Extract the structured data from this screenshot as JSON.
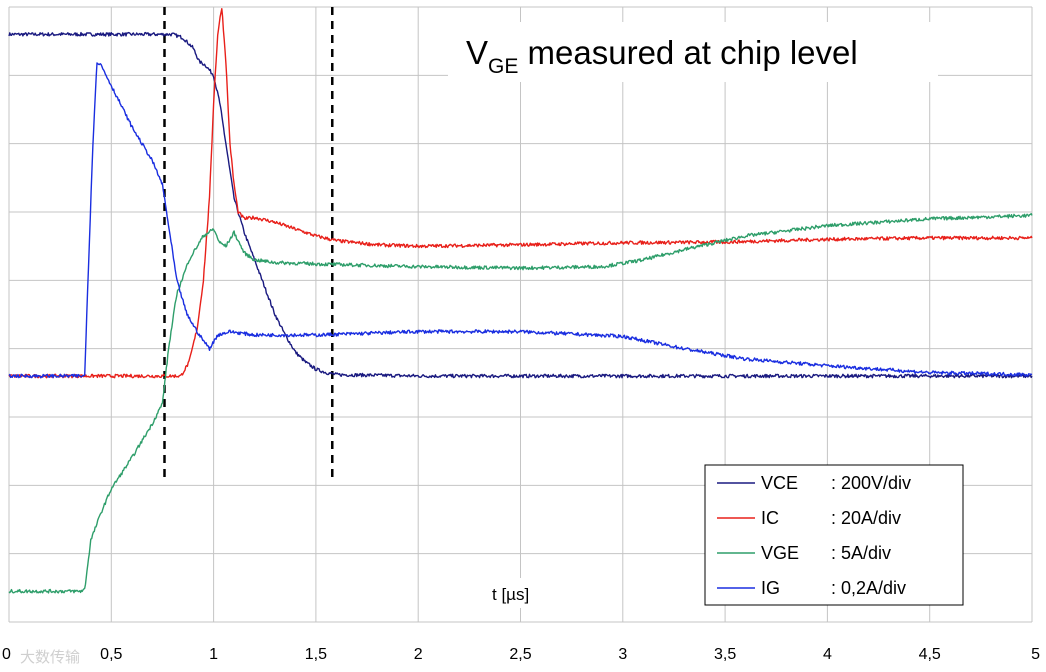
{
  "chart_data": {
    "type": "line",
    "title_main": "V",
    "title_sub": "GE",
    "title_rest": " measured at chip level",
    "xlabel": "t [µs]",
    "xlim": [
      0,
      5
    ],
    "ylim": [
      0,
      9
    ],
    "x_ticks": [
      {
        "value": 0,
        "label": "0"
      },
      {
        "value": 0.5,
        "label": "0,5"
      },
      {
        "value": 1,
        "label": "1"
      },
      {
        "value": 1.5,
        "label": "1,5"
      },
      {
        "value": 2,
        "label": "2"
      },
      {
        "value": 2.5,
        "label": "2,5"
      },
      {
        "value": 3,
        "label": "3"
      },
      {
        "value": 3.5,
        "label": "3,5"
      },
      {
        "value": 4,
        "label": "4"
      },
      {
        "value": 4.5,
        "label": "4,5"
      },
      {
        "value": 5,
        "label": "5"
      }
    ],
    "grid": true,
    "markers": [
      {
        "x": 0.76,
        "y_from": 2.1,
        "y_to": 9
      },
      {
        "x": 1.58,
        "y_from": 2.1,
        "y_to": 9
      }
    ],
    "legend": {
      "placement": "bottom-right",
      "entries": [
        {
          "name": "VCE",
          "scale": ": 200V/div",
          "color": "#1a1a80"
        },
        {
          "name": "IC",
          "scale": ": 20A/div",
          "color": "#e8201a"
        },
        {
          "name": "VGE",
          "scale": ": 5A/div",
          "color": "#2e9e6a"
        },
        {
          "name": "IG",
          "scale": ": 0,2A/div",
          "color": "#1a2ee0"
        }
      ]
    },
    "series": [
      {
        "name": "VCE",
        "color": "#1a1a80",
        "points": [
          [
            0,
            8.6
          ],
          [
            0.2,
            8.6
          ],
          [
            0.4,
            8.6
          ],
          [
            0.6,
            8.6
          ],
          [
            0.8,
            8.6
          ],
          [
            0.85,
            8.55
          ],
          [
            0.9,
            8.4
          ],
          [
            0.93,
            8.2
          ],
          [
            0.96,
            8.15
          ],
          [
            1.0,
            8.0
          ],
          [
            1.03,
            7.6
          ],
          [
            1.06,
            7.0
          ],
          [
            1.1,
            6.2
          ],
          [
            1.15,
            5.7
          ],
          [
            1.2,
            5.3
          ],
          [
            1.25,
            4.9
          ],
          [
            1.3,
            4.5
          ],
          [
            1.35,
            4.2
          ],
          [
            1.4,
            3.95
          ],
          [
            1.45,
            3.8
          ],
          [
            1.5,
            3.7
          ],
          [
            1.55,
            3.65
          ],
          [
            1.6,
            3.62
          ],
          [
            2.0,
            3.6
          ],
          [
            3.0,
            3.6
          ],
          [
            4.0,
            3.6
          ],
          [
            5.0,
            3.6
          ]
        ]
      },
      {
        "name": "IC",
        "color": "#e8201a",
        "points": [
          [
            0,
            3.6
          ],
          [
            0.5,
            3.6
          ],
          [
            0.8,
            3.6
          ],
          [
            0.84,
            3.6
          ],
          [
            0.88,
            3.8
          ],
          [
            0.92,
            4.3
          ],
          [
            0.95,
            5.0
          ],
          [
            0.98,
            6.2
          ],
          [
            1.0,
            7.6
          ],
          [
            1.02,
            8.6
          ],
          [
            1.04,
            9.0
          ],
          [
            1.06,
            8.2
          ],
          [
            1.08,
            7.0
          ],
          [
            1.1,
            6.4
          ],
          [
            1.12,
            6.0
          ],
          [
            1.15,
            5.9
          ],
          [
            1.2,
            5.92
          ],
          [
            1.3,
            5.85
          ],
          [
            1.4,
            5.75
          ],
          [
            1.5,
            5.65
          ],
          [
            1.6,
            5.58
          ],
          [
            1.8,
            5.52
          ],
          [
            2.0,
            5.5
          ],
          [
            2.5,
            5.52
          ],
          [
            3.0,
            5.55
          ],
          [
            3.5,
            5.56
          ],
          [
            4.0,
            5.6
          ],
          [
            4.5,
            5.62
          ],
          [
            5.0,
            5.62
          ]
        ]
      },
      {
        "name": "VGE",
        "color": "#2e9e6a",
        "points": [
          [
            0,
            0.45
          ],
          [
            0.35,
            0.45
          ],
          [
            0.37,
            0.48
          ],
          [
            0.4,
            1.2
          ],
          [
            0.45,
            1.6
          ],
          [
            0.5,
            1.95
          ],
          [
            0.6,
            2.4
          ],
          [
            0.7,
            2.9
          ],
          [
            0.75,
            3.2
          ],
          [
            0.78,
            4.0
          ],
          [
            0.82,
            4.8
          ],
          [
            0.88,
            5.3
          ],
          [
            0.95,
            5.65
          ],
          [
            1.0,
            5.75
          ],
          [
            1.03,
            5.55
          ],
          [
            1.06,
            5.5
          ],
          [
            1.1,
            5.7
          ],
          [
            1.15,
            5.4
          ],
          [
            1.2,
            5.3
          ],
          [
            1.3,
            5.26
          ],
          [
            1.5,
            5.24
          ],
          [
            2.0,
            5.2
          ],
          [
            2.5,
            5.18
          ],
          [
            2.9,
            5.2
          ],
          [
            3.1,
            5.3
          ],
          [
            3.3,
            5.45
          ],
          [
            3.6,
            5.65
          ],
          [
            4.0,
            5.8
          ],
          [
            4.5,
            5.9
          ],
          [
            5.0,
            5.95
          ]
        ]
      },
      {
        "name": "IG",
        "color": "#1a2ee0",
        "points": [
          [
            0,
            3.6
          ],
          [
            0.37,
            3.6
          ],
          [
            0.38,
            4.5
          ],
          [
            0.41,
            7.0
          ],
          [
            0.43,
            8.2
          ],
          [
            0.45,
            8.15
          ],
          [
            0.5,
            7.85
          ],
          [
            0.55,
            7.55
          ],
          [
            0.6,
            7.25
          ],
          [
            0.65,
            7.0
          ],
          [
            0.7,
            6.75
          ],
          [
            0.75,
            6.4
          ],
          [
            0.78,
            5.8
          ],
          [
            0.82,
            5.0
          ],
          [
            0.87,
            4.5
          ],
          [
            0.93,
            4.2
          ],
          [
            0.98,
            4.0
          ],
          [
            1.02,
            4.2
          ],
          [
            1.08,
            4.25
          ],
          [
            1.2,
            4.2
          ],
          [
            1.5,
            4.2
          ],
          [
            2.0,
            4.25
          ],
          [
            2.5,
            4.25
          ],
          [
            3.0,
            4.18
          ],
          [
            3.3,
            4.0
          ],
          [
            3.6,
            3.85
          ],
          [
            4.0,
            3.75
          ],
          [
            4.5,
            3.65
          ],
          [
            5.0,
            3.62
          ]
        ]
      }
    ]
  },
  "watermark": "大数传输"
}
